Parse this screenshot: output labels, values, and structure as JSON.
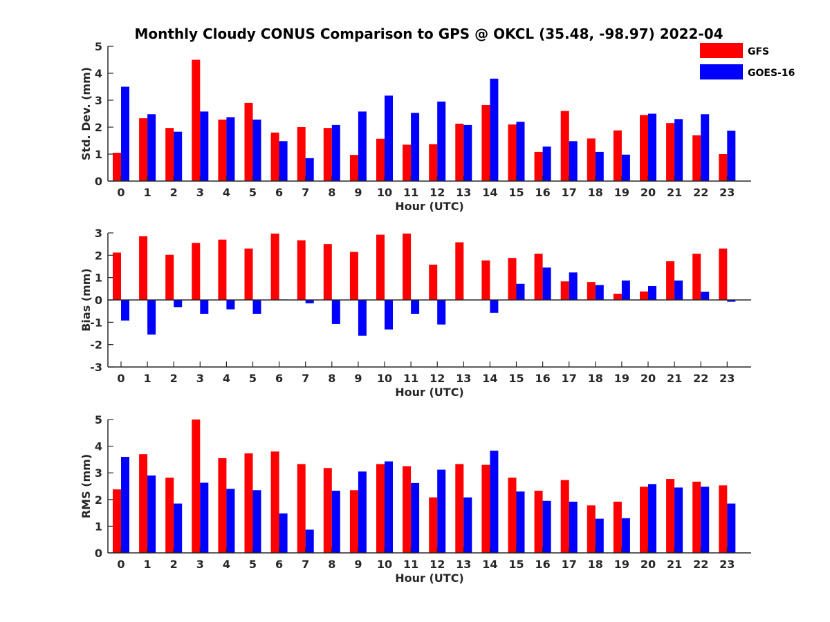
{
  "chart_data": {
    "type": "bar",
    "title": "Monthly Cloudy CONUS Comparison to GPS @ OKCL (35.48, -98.97) 2022-04",
    "categories": [
      "0",
      "1",
      "2",
      "3",
      "4",
      "5",
      "6",
      "7",
      "8",
      "9",
      "10",
      "11",
      "12",
      "13",
      "14",
      "15",
      "16",
      "17",
      "18",
      "19",
      "20",
      "21",
      "22",
      "23"
    ],
    "legend": {
      "placement": "top-right",
      "entries": [
        {
          "name": "GFS",
          "color": "#ff0000"
        },
        {
          "name": "GOES-16",
          "color": "#0000ff"
        }
      ]
    },
    "panels": [
      {
        "ylabel": "Std. Dev. (mm)",
        "xlabel": "Hour (UTC)",
        "ylim": [
          0,
          5
        ],
        "yticks": [
          0,
          1,
          2,
          3,
          4,
          5
        ],
        "series": [
          {
            "name": "GFS",
            "color": "#ff0000",
            "values": [
              1.05,
              2.33,
              1.97,
              4.5,
              2.28,
              2.9,
              1.8,
              2.0,
              1.97,
              0.97,
              1.57,
              1.35,
              1.37,
              2.13,
              2.82,
              2.1,
              1.08,
              2.6,
              1.58,
              1.88,
              2.45,
              2.15,
              1.7,
              1.0
            ]
          },
          {
            "name": "GOES-16",
            "color": "#0000ff",
            "values": [
              3.5,
              2.48,
              1.83,
              2.58,
              2.37,
              2.28,
              1.48,
              0.85,
              2.08,
              2.58,
              3.17,
              2.53,
              2.95,
              2.08,
              3.8,
              2.2,
              1.28,
              1.48,
              1.08,
              0.98,
              2.5,
              2.3,
              2.48,
              1.87
            ]
          }
        ]
      },
      {
        "ylabel": "Bias (mm)",
        "xlabel": "Hour (UTC)",
        "ylim": [
          -3,
          3
        ],
        "yticks": [
          -3,
          -2,
          -1,
          0,
          1,
          2,
          3
        ],
        "series": [
          {
            "name": "GFS",
            "color": "#ff0000",
            "values": [
              2.12,
              2.85,
              2.02,
              2.55,
              2.7,
              2.3,
              2.97,
              2.67,
              2.5,
              2.15,
              2.92,
              2.97,
              1.58,
              2.58,
              1.77,
              1.88,
              2.07,
              0.83,
              0.8,
              0.28,
              0.38,
              1.73,
              2.07,
              2.3
            ]
          },
          {
            "name": "GOES-16",
            "color": "#0000ff",
            "values": [
              -0.92,
              -1.55,
              -0.32,
              -0.62,
              -0.42,
              -0.62,
              0.02,
              -0.15,
              -1.08,
              -1.6,
              -1.32,
              -0.62,
              -1.1,
              0.0,
              -0.58,
              0.72,
              1.45,
              1.23,
              0.67,
              0.87,
              0.62,
              0.87,
              0.37,
              -0.08
            ]
          }
        ]
      },
      {
        "ylabel": "RMS (mm)",
        "xlabel": "Hour (UTC)",
        "ylim": [
          0,
          5
        ],
        "yticks": [
          0,
          1,
          2,
          3,
          4,
          5
        ],
        "series": [
          {
            "name": "GFS",
            "color": "#ff0000",
            "values": [
              2.38,
              3.7,
              2.82,
              5.0,
              3.55,
              3.73,
              3.8,
              3.33,
              3.18,
              2.35,
              3.33,
              3.25,
              2.08,
              3.33,
              3.3,
              2.82,
              2.33,
              2.73,
              1.78,
              1.92,
              2.48,
              2.77,
              2.67,
              2.53
            ]
          },
          {
            "name": "GOES-16",
            "color": "#0000ff",
            "values": [
              3.6,
              2.9,
              1.85,
              2.63,
              2.4,
              2.35,
              1.48,
              0.87,
              2.33,
              3.05,
              3.43,
              2.62,
              3.12,
              2.08,
              3.83,
              2.3,
              1.95,
              1.92,
              1.28,
              1.3,
              2.58,
              2.45,
              2.48,
              1.85
            ]
          }
        ]
      }
    ]
  }
}
